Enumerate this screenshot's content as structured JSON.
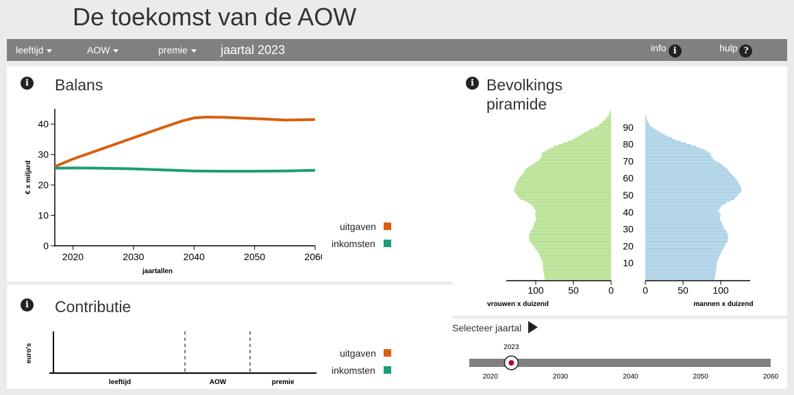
{
  "app": {
    "title": "De toekomst van de AOW"
  },
  "navbar": {
    "menu_items": [
      "leeftijd",
      "AOW",
      "premie"
    ],
    "year_label": "jaartal 2023",
    "info_label": "info",
    "help_label": "hulp"
  },
  "balans": {
    "title": "Balans",
    "legend": [
      {
        "label": "uitgaven",
        "color": "#d95f0e"
      },
      {
        "label": "inkomsten",
        "color": "#1b9e77"
      }
    ]
  },
  "contributie": {
    "title": "Contributie",
    "ylabel": "euro's",
    "categories": [
      "leeftijd",
      "AOW",
      "premie"
    ],
    "legend": [
      {
        "label": "uitgaven",
        "color": "#d95f0e"
      },
      {
        "label": "inkomsten",
        "color": "#1b9e77"
      }
    ]
  },
  "pyramid": {
    "title_line1": "Bevolkings",
    "title_line2": "piramide"
  },
  "slider": {
    "label": "Selecteer jaartal",
    "value": 2023,
    "min": 2017,
    "max": 2060,
    "ticks": [
      2020,
      2030,
      2040,
      2050,
      2060
    ],
    "track_color": "#808080",
    "dot_color": "#b3003c"
  },
  "chart_data": [
    {
      "type": "line",
      "title": "Balans",
      "xlabel": "jaartallen",
      "ylabel": "€ x miljard",
      "xlim": [
        2017,
        2060
      ],
      "ylim": [
        0,
        45
      ],
      "xticks": [
        2020,
        2030,
        2040,
        2050,
        2060
      ],
      "yticks": [
        0,
        10,
        20,
        30,
        40
      ],
      "series": [
        {
          "name": "uitgaven",
          "color": "#d95f0e",
          "x": [
            2017,
            2020,
            2025,
            2030,
            2035,
            2038,
            2040,
            2042,
            2045,
            2050,
            2055,
            2060
          ],
          "y": [
            26,
            28.5,
            32,
            35.5,
            39,
            41,
            42,
            42.3,
            42.2,
            41.8,
            41.3,
            41.5
          ]
        },
        {
          "name": "inkomsten",
          "color": "#1b9e77",
          "x": [
            2017,
            2020,
            2025,
            2030,
            2035,
            2040,
            2045,
            2050,
            2055,
            2060
          ],
          "y": [
            25.5,
            25.6,
            25.5,
            25.3,
            24.9,
            24.6,
            24.5,
            24.5,
            24.6,
            24.8
          ]
        }
      ],
      "legend": "right"
    },
    {
      "type": "bar",
      "title": "Contributie",
      "categories": [
        "leeftijd",
        "AOW",
        "premie"
      ],
      "ylabel": "euro's",
      "series": []
    },
    {
      "type": "bar",
      "title": "Bevolkings piramide",
      "orientation": "horizontal",
      "ylabel_ticks": [
        10,
        20,
        30,
        40,
        50,
        60,
        70,
        80,
        90
      ],
      "xlabel_left": "vrouwen x duizend",
      "xlabel_right": "mannen x duizend",
      "xlim": [
        0,
        130
      ],
      "xticks_left": [
        100,
        50,
        0
      ],
      "xticks_right": [
        0,
        50,
        100
      ],
      "ages": [
        0,
        5,
        10,
        15,
        20,
        22,
        25,
        28,
        30,
        33,
        35,
        38,
        40,
        43,
        45,
        47,
        50,
        52,
        55,
        58,
        60,
        62,
        65,
        68,
        70,
        72,
        74,
        76,
        78,
        80,
        82,
        85,
        88,
        90,
        93,
        96,
        99
      ],
      "women": [
        88,
        90,
        91,
        96,
        104,
        108,
        109,
        107,
        104,
        102,
        99,
        101,
        100,
        104,
        110,
        120,
        126,
        129,
        127,
        124,
        121,
        117,
        113,
        103,
        96,
        92,
        92,
        85,
        76,
        64,
        52,
        40,
        28,
        18,
        10,
        4,
        1
      ],
      "colors": {
        "women": "#b2df8a",
        "men": "#a6cee3"
      },
      "men": [
        92,
        94,
        95,
        100,
        106,
        109,
        110,
        108,
        104,
        102,
        99,
        100,
        97,
        101,
        108,
        118,
        124,
        128,
        126,
        122,
        118,
        114,
        108,
        100,
        92,
        88,
        86,
        79,
        68,
        54,
        40,
        26,
        14,
        7,
        3,
        1,
        0
      ]
    }
  ]
}
